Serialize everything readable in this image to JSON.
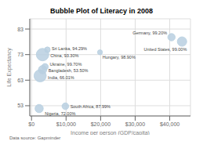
{
  "chart_data": {
    "type": "scatter",
    "title": "Bubble Plot of Literacy in 2008",
    "xlabel": "Income per person (GDP/capita)",
    "ylabel": "Life Expectancy",
    "footnote": "Data source: Gapminder",
    "xlim": [
      -500,
      46000
    ],
    "ylim": [
      49,
      87
    ],
    "xticks": [
      {
        "value": 0,
        "label": "$0"
      },
      {
        "value": 10000,
        "label": "$10,000"
      },
      {
        "value": 20000,
        "label": "$20,000"
      },
      {
        "value": 30000,
        "label": "$30,000"
      },
      {
        "value": 40000,
        "label": "$40,000"
      }
    ],
    "yticks": [
      53,
      63,
      73,
      83
    ],
    "grid": true,
    "color": "#b8cfe0",
    "x": [
      40512,
      43560,
      19813,
      4595,
      3200,
      3899,
      3200,
      2500,
      9794,
      2206
    ],
    "values": [
      79.8,
      78.1,
      73.9,
      74.9,
      73.0,
      68.2,
      67.1,
      64.7,
      52.8,
      51.9
    ],
    "sizes": [
      82369548,
      304374846,
      10030975,
      20238000,
      1333260000,
      46299700,
      160000000,
      1186000000,
      48697000,
      151212000
    ],
    "labels": [
      "Germany, 99.20%",
      "United States, 99.00%",
      "Hungary, 98.90%",
      "Sri Lanka, 94.29%",
      "China, 93.30%",
      "Ukraine, 99.70%",
      "Bangladesh, 53.50%",
      "India, 66.01%",
      "South Africa, 87.99%",
      "Nigeria, 72.00%"
    ]
  }
}
